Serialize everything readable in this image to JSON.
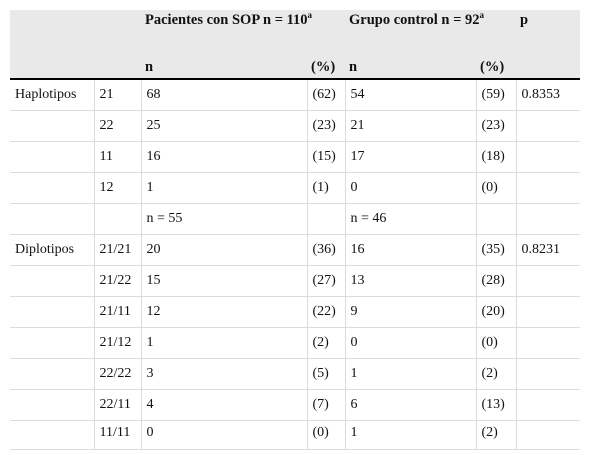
{
  "header": {
    "patients_title": "Pacientes con SOP n = 110",
    "patients_sup": "a",
    "control_title": "Grupo control n = 92",
    "control_sup": "a",
    "p_label": "p",
    "n_label_patients": "n",
    "pct_label_patients": "(%)",
    "n_label_control": "n",
    "pct_label_control": "(%)"
  },
  "rows": [
    {
      "group": "Haplotipos",
      "type": "21",
      "n1": "68",
      "p1": "(62)",
      "n2": "54",
      "p2": "(59)",
      "p": "0.8353"
    },
    {
      "group": "",
      "type": "22",
      "n1": "25",
      "p1": "(23)",
      "n2": "21",
      "p2": "(23)",
      "p": ""
    },
    {
      "group": "",
      "type": "11",
      "n1": "16",
      "p1": "(15)",
      "n2": "17",
      "p2": "(18)",
      "p": ""
    },
    {
      "group": "",
      "type": "12",
      "n1": "1",
      "p1": "(1)",
      "n2": "0",
      "p2": "(0)",
      "p": ""
    },
    {
      "group": "",
      "type": "",
      "n1": "n = 55",
      "p1": "",
      "n2": "n = 46",
      "p2": "",
      "p": ""
    },
    {
      "group": "Diplotipos",
      "type": "21/21",
      "n1": "20",
      "p1": "(36)",
      "n2": "16",
      "p2": "(35)",
      "p": "0.8231"
    },
    {
      "group": "",
      "type": "21/22",
      "n1": "15",
      "p1": "(27)",
      "n2": "13",
      "p2": "(28)",
      "p": ""
    },
    {
      "group": "",
      "type": "21/11",
      "n1": "12",
      "p1": "(22)",
      "n2": "9",
      "p2": "(20)",
      "p": ""
    },
    {
      "group": "",
      "type": "21/12",
      "n1": "1",
      "p1": "(2)",
      "n2": "0",
      "p2": "(0)",
      "p": ""
    },
    {
      "group": "",
      "type": "22/22",
      "n1": "3",
      "p1": "(5)",
      "n2": "1",
      "p2": "(2)",
      "p": ""
    },
    {
      "group": "",
      "type": "22/11",
      "n1": "4",
      "p1": "(7)",
      "n2": "6",
      "p2": "(13)",
      "p": ""
    },
    {
      "group": "",
      "type": "11/11",
      "n1": "0",
      "p1": "(0)",
      "n2": "1",
      "p2": "(2)",
      "p": ""
    }
  ]
}
